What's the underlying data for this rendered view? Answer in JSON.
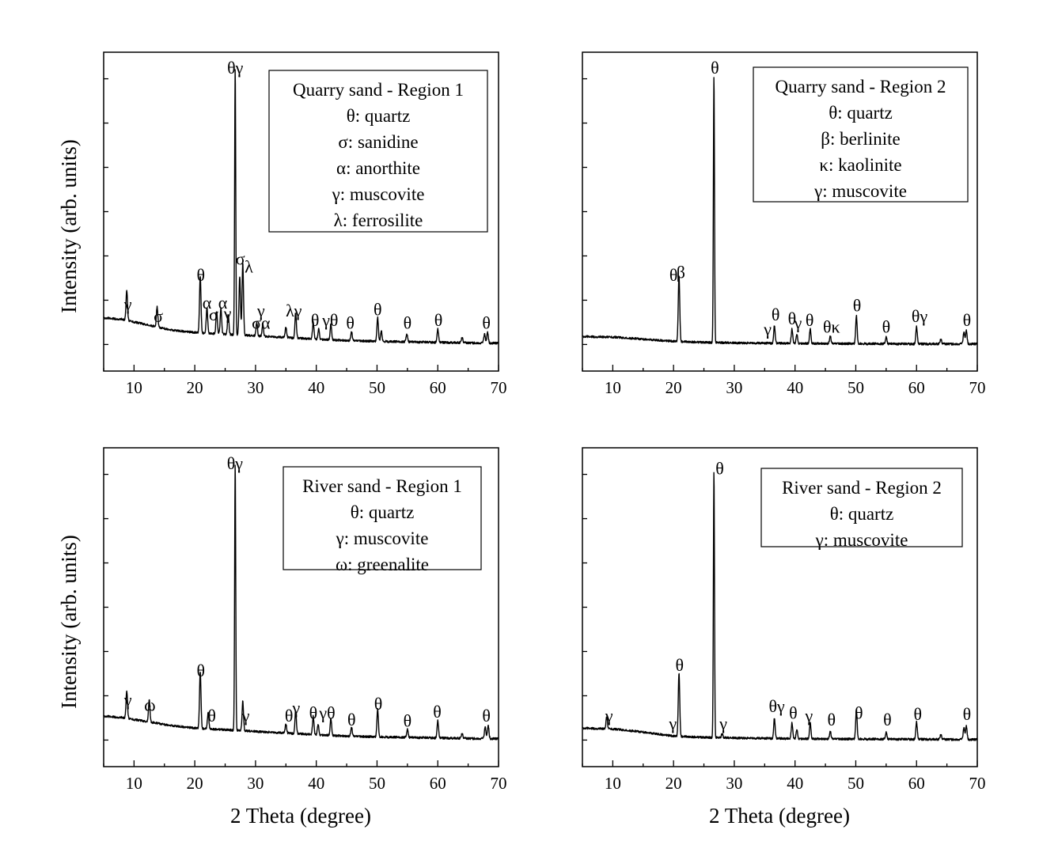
{
  "figure": {
    "ylabel": "Intensity (arb. units)",
    "xlabel": "2 Theta (degree)"
  },
  "chart_data": [
    {
      "type": "line",
      "title": "Quarry sand - Region 1",
      "xlim": [
        5,
        70
      ],
      "xticks": [
        10,
        20,
        30,
        40,
        50,
        60,
        70
      ],
      "y_units": "arb. units (normalized, main peak = 1.0)",
      "ylim": [
        -0.1,
        1.1
      ],
      "legend": [
        "θ: quartz",
        "σ: sanidine",
        "α: anorthite",
        "γ: muscovite",
        "λ: ferrosilite"
      ],
      "baseline": {
        "x": [
          5,
          8,
          12,
          16,
          20,
          24,
          28,
          32,
          36,
          40,
          45,
          50,
          55,
          60,
          65,
          70
        ],
        "y": [
          0.1,
          0.095,
          0.075,
          0.055,
          0.045,
          0.04,
          0.035,
          0.03,
          0.025,
          0.02,
          0.015,
          0.012,
          0.01,
          0.008,
          0.006,
          0.005
        ]
      },
      "peaks": [
        {
          "x": 8.8,
          "y": 0.115
        },
        {
          "x": 13.8,
          "y": 0.075
        },
        {
          "x": 20.9,
          "y": 0.215
        },
        {
          "x": 22.0,
          "y": 0.095
        },
        {
          "x": 23.6,
          "y": 0.085
        },
        {
          "x": 24.3,
          "y": 0.095
        },
        {
          "x": 25.5,
          "y": 0.075
        },
        {
          "x": 26.65,
          "y": 1.0
        },
        {
          "x": 27.4,
          "y": 0.22
        },
        {
          "x": 27.9,
          "y": 0.27
        },
        {
          "x": 30.2,
          "y": 0.05
        },
        {
          "x": 31.2,
          "y": 0.045
        },
        {
          "x": 35.0,
          "y": 0.04
        },
        {
          "x": 36.6,
          "y": 0.095
        },
        {
          "x": 39.5,
          "y": 0.065
        },
        {
          "x": 40.4,
          "y": 0.04
        },
        {
          "x": 42.4,
          "y": 0.06
        },
        {
          "x": 45.8,
          "y": 0.035
        },
        {
          "x": 50.1,
          "y": 0.09
        },
        {
          "x": 50.7,
          "y": 0.04
        },
        {
          "x": 54.9,
          "y": 0.03
        },
        {
          "x": 60.0,
          "y": 0.05
        },
        {
          "x": 64.0,
          "y": 0.02
        },
        {
          "x": 67.7,
          "y": 0.035
        },
        {
          "x": 68.2,
          "y": 0.04
        }
      ],
      "annotations": [
        {
          "text": "θγ",
          "x": 26.65,
          "y": 1.02
        },
        {
          "text": "γ",
          "x": 9.0,
          "y": 0.13
        },
        {
          "text": "σ",
          "x": 14.0,
          "y": 0.085
        },
        {
          "text": "θ",
          "x": 21.0,
          "y": 0.24
        },
        {
          "text": "α",
          "x": 22.0,
          "y": 0.135
        },
        {
          "text": "σ",
          "x": 23.1,
          "y": 0.09
        },
        {
          "text": "α",
          "x": 24.6,
          "y": 0.135
        },
        {
          "text": "γ",
          "x": 25.4,
          "y": 0.095
        },
        {
          "text": "σ",
          "x": 27.5,
          "y": 0.3
        },
        {
          "text": "λ",
          "x": 28.9,
          "y": 0.27
        },
        {
          "text": "γ",
          "x": 30.9,
          "y": 0.105
        },
        {
          "text": "σα",
          "x": 30.9,
          "y": 0.06
        },
        {
          "text": "λγ",
          "x": 36.3,
          "y": 0.105
        },
        {
          "text": "θ",
          "x": 39.8,
          "y": 0.07
        },
        {
          "text": "γθ",
          "x": 42.3,
          "y": 0.07
        },
        {
          "text": "θ",
          "x": 45.6,
          "y": 0.06
        },
        {
          "text": "θ",
          "x": 50.1,
          "y": 0.11
        },
        {
          "text": "θ",
          "x": 55.0,
          "y": 0.06
        },
        {
          "text": "θ",
          "x": 60.1,
          "y": 0.07
        },
        {
          "text": "θ",
          "x": 68.0,
          "y": 0.06
        }
      ]
    },
    {
      "type": "line",
      "title": "Quarry sand - Region 2",
      "xlim": [
        5,
        70
      ],
      "xticks": [
        10,
        20,
        30,
        40,
        50,
        60,
        70
      ],
      "y_units": "arb. units (normalized, main peak = 1.0)",
      "ylim": [
        -0.1,
        1.1
      ],
      "legend": [
        "θ: quartz",
        "β: berlinite",
        "κ: kaolinite",
        "γ: muscovite"
      ],
      "baseline": {
        "x": [
          5,
          10,
          15,
          20,
          25,
          30,
          40,
          50,
          60,
          70
        ],
        "y": [
          0.03,
          0.028,
          0.02,
          0.012,
          0.008,
          0.006,
          0.004,
          0.003,
          0.002,
          0.002
        ]
      },
      "peaks": [
        {
          "x": 20.9,
          "y": 0.25
        },
        {
          "x": 26.65,
          "y": 1.0
        },
        {
          "x": 36.6,
          "y": 0.065
        },
        {
          "x": 39.5,
          "y": 0.055
        },
        {
          "x": 40.3,
          "y": 0.035
        },
        {
          "x": 42.5,
          "y": 0.055
        },
        {
          "x": 45.8,
          "y": 0.03
        },
        {
          "x": 50.1,
          "y": 0.105
        },
        {
          "x": 55.0,
          "y": 0.025
        },
        {
          "x": 60.0,
          "y": 0.065
        },
        {
          "x": 64.0,
          "y": 0.018
        },
        {
          "x": 67.8,
          "y": 0.045
        },
        {
          "x": 68.2,
          "y": 0.05
        }
      ],
      "annotations": [
        {
          "text": "θ",
          "x": 26.8,
          "y": 1.02
        },
        {
          "text": "θ",
          "x": 20.0,
          "y": 0.24
        },
        {
          "text": "β",
          "x": 21.2,
          "y": 0.25
        },
        {
          "text": "θ",
          "x": 36.8,
          "y": 0.09
        },
        {
          "text": "γ",
          "x": 35.5,
          "y": 0.035
        },
        {
          "text": "θ",
          "x": 39.5,
          "y": 0.075
        },
        {
          "text": "γ",
          "x": 40.5,
          "y": 0.06
        },
        {
          "text": "θ",
          "x": 42.4,
          "y": 0.07
        },
        {
          "text": "θκ",
          "x": 46.0,
          "y": 0.045
        },
        {
          "text": "θ",
          "x": 50.2,
          "y": 0.125
        },
        {
          "text": "θ",
          "x": 55.0,
          "y": 0.045
        },
        {
          "text": "θγ",
          "x": 60.5,
          "y": 0.085
        },
        {
          "text": "θ",
          "x": 68.3,
          "y": 0.07
        }
      ]
    },
    {
      "type": "line",
      "title": "River sand - Region 1",
      "xlim": [
        5,
        70
      ],
      "xticks": [
        10,
        20,
        30,
        40,
        50,
        60,
        70
      ],
      "y_units": "arb. units (normalized, main peak = 1.0)",
      "ylim": [
        -0.1,
        1.1
      ],
      "legend": [
        "θ: quartz",
        "γ: muscovite",
        "ω: greenalite"
      ],
      "baseline": {
        "x": [
          5,
          8,
          12,
          16,
          20,
          24,
          28,
          32,
          36,
          40,
          45,
          50,
          55,
          60,
          65,
          70
        ],
        "y": [
          0.09,
          0.085,
          0.07,
          0.055,
          0.045,
          0.04,
          0.035,
          0.03,
          0.025,
          0.02,
          0.015,
          0.012,
          0.01,
          0.008,
          0.006,
          0.005
        ]
      },
      "peaks": [
        {
          "x": 8.8,
          "y": 0.105
        },
        {
          "x": 12.5,
          "y": 0.085
        },
        {
          "x": 20.9,
          "y": 0.215
        },
        {
          "x": 22.2,
          "y": 0.06
        },
        {
          "x": 26.65,
          "y": 1.0
        },
        {
          "x": 27.9,
          "y": 0.11
        },
        {
          "x": 35.0,
          "y": 0.035
        },
        {
          "x": 36.6,
          "y": 0.085
        },
        {
          "x": 39.5,
          "y": 0.07
        },
        {
          "x": 40.3,
          "y": 0.04
        },
        {
          "x": 42.4,
          "y": 0.065
        },
        {
          "x": 45.8,
          "y": 0.035
        },
        {
          "x": 50.1,
          "y": 0.105
        },
        {
          "x": 55.0,
          "y": 0.03
        },
        {
          "x": 60.0,
          "y": 0.065
        },
        {
          "x": 64.0,
          "y": 0.018
        },
        {
          "x": 67.8,
          "y": 0.045
        },
        {
          "x": 68.3,
          "y": 0.05
        }
      ],
      "annotations": [
        {
          "text": "θγ",
          "x": 26.6,
          "y": 1.02
        },
        {
          "text": "γ",
          "x": 9.0,
          "y": 0.13
        },
        {
          "text": "ω",
          "x": 12.6,
          "y": 0.11
        },
        {
          "text": "θ",
          "x": 21.0,
          "y": 0.24
        },
        {
          "text": "θ",
          "x": 22.8,
          "y": 0.07
        },
        {
          "text": "γ",
          "x": 28.4,
          "y": 0.07
        },
        {
          "text": "θ",
          "x": 35.5,
          "y": 0.07
        },
        {
          "text": "γ",
          "x": 36.7,
          "y": 0.1
        },
        {
          "text": "θ",
          "x": 39.5,
          "y": 0.08
        },
        {
          "text": "γθ",
          "x": 41.8,
          "y": 0.08
        },
        {
          "text": "θ",
          "x": 45.8,
          "y": 0.055
        },
        {
          "text": "θ",
          "x": 50.2,
          "y": 0.115
        },
        {
          "text": "θ",
          "x": 55.0,
          "y": 0.05
        },
        {
          "text": "θ",
          "x": 59.9,
          "y": 0.085
        },
        {
          "text": "θ",
          "x": 68.0,
          "y": 0.07
        }
      ]
    },
    {
      "type": "line",
      "title": "River sand - Region 2",
      "xlim": [
        5,
        70
      ],
      "xticks": [
        10,
        20,
        30,
        40,
        50,
        60,
        70
      ],
      "y_units": "arb. units (normalized, main peak = 1.0)",
      "ylim": [
        -0.1,
        1.1
      ],
      "legend": [
        "θ: quartz",
        "γ: muscovite"
      ],
      "baseline": {
        "x": [
          5,
          10,
          15,
          20,
          25,
          30,
          40,
          50,
          60,
          70
        ],
        "y": [
          0.045,
          0.042,
          0.03,
          0.015,
          0.01,
          0.008,
          0.005,
          0.004,
          0.003,
          0.002
        ]
      },
      "peaks": [
        {
          "x": 9.0,
          "y": 0.045
        },
        {
          "x": 20.9,
          "y": 0.24
        },
        {
          "x": 26.65,
          "y": 1.0
        },
        {
          "x": 28.0,
          "y": 0.015
        },
        {
          "x": 36.6,
          "y": 0.075
        },
        {
          "x": 39.5,
          "y": 0.06
        },
        {
          "x": 40.3,
          "y": 0.035
        },
        {
          "x": 42.5,
          "y": 0.06
        },
        {
          "x": 45.8,
          "y": 0.03
        },
        {
          "x": 50.1,
          "y": 0.11
        },
        {
          "x": 55.0,
          "y": 0.025
        },
        {
          "x": 60.0,
          "y": 0.065
        },
        {
          "x": 64.0,
          "y": 0.018
        },
        {
          "x": 67.8,
          "y": 0.045
        },
        {
          "x": 68.2,
          "y": 0.05
        }
      ],
      "annotations": [
        {
          "text": "θ",
          "x": 27.6,
          "y": 1.0
        },
        {
          "text": "γ",
          "x": 9.4,
          "y": 0.07
        },
        {
          "text": "θ",
          "x": 21.0,
          "y": 0.26
        },
        {
          "text": "γ",
          "x": 19.9,
          "y": 0.04
        },
        {
          "text": "γ",
          "x": 28.2,
          "y": 0.04
        },
        {
          "text": "θγ",
          "x": 37.0,
          "y": 0.105
        },
        {
          "text": "θ",
          "x": 39.7,
          "y": 0.08
        },
        {
          "text": "γ",
          "x": 42.3,
          "y": 0.07
        },
        {
          "text": "θ",
          "x": 46.0,
          "y": 0.055
        },
        {
          "text": "θ",
          "x": 50.5,
          "y": 0.08
        },
        {
          "text": "θ",
          "x": 55.2,
          "y": 0.055
        },
        {
          "text": "θ",
          "x": 60.2,
          "y": 0.075
        },
        {
          "text": "θ",
          "x": 68.3,
          "y": 0.075
        }
      ]
    }
  ]
}
